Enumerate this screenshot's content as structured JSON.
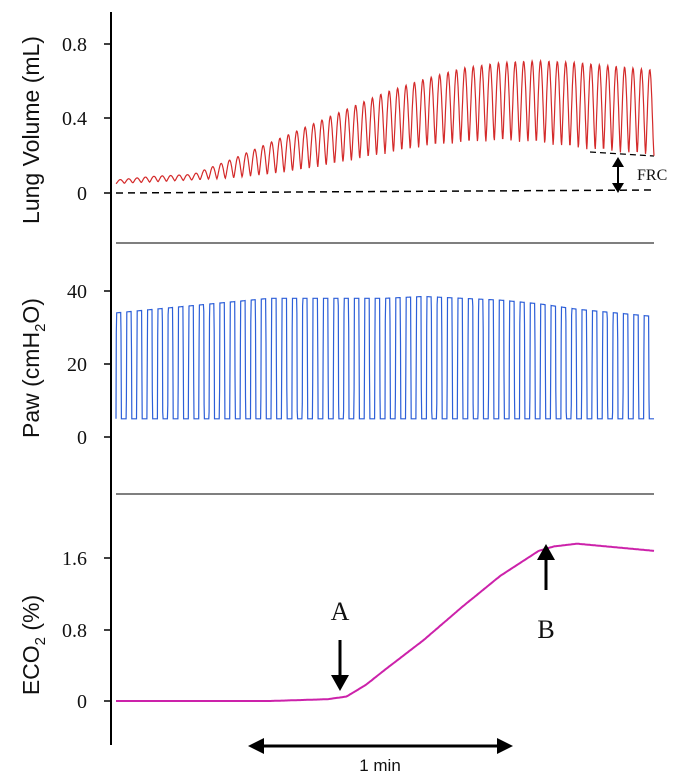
{
  "chart_data": [
    {
      "type": "line",
      "panel": "top",
      "ylabel": "Lung Volume (mL)",
      "yticks": [
        "0.8",
        "0.4",
        "0"
      ],
      "ylim": [
        0,
        0.8
      ],
      "series": [
        {
          "color": "#d42a2a",
          "description_points": "breath-by-breath volume oscillation",
          "x_sec": [
            0,
            10,
            20,
            30,
            40,
            50,
            60,
            70,
            80,
            90,
            100,
            110,
            120,
            130,
            140
          ],
          "trough": [
            0.05,
            0.06,
            0.07,
            0.08,
            0.1,
            0.13,
            0.17,
            0.21,
            0.25,
            0.27,
            0.28,
            0.27,
            0.24,
            0.22,
            0.2
          ],
          "peak": [
            0.07,
            0.09,
            0.1,
            0.18,
            0.27,
            0.36,
            0.45,
            0.54,
            0.61,
            0.67,
            0.7,
            0.71,
            0.7,
            0.68,
            0.66
          ]
        }
      ],
      "annotation": "FRC"
    },
    {
      "type": "line",
      "panel": "middle",
      "ylabel_main": "Paw (cmH",
      "ylabel_sub": "2",
      "ylabel_end": "O)",
      "yticks": [
        "40",
        "20",
        "0"
      ],
      "ylim": [
        0,
        40
      ],
      "series": [
        {
          "color": "#2d5fd8",
          "trough": 5,
          "x_sec": [
            0,
            10,
            20,
            30,
            40,
            50,
            60,
            70,
            80,
            90,
            100,
            110,
            120,
            130,
            140
          ],
          "peak": [
            34,
            35,
            36,
            37,
            38,
            38,
            38,
            38,
            38.5,
            38,
            37.5,
            36.5,
            35,
            34,
            33
          ]
        }
      ]
    },
    {
      "type": "line",
      "panel": "bottom",
      "ylabel_main": "ECO",
      "ylabel_sub": "2",
      "ylabel_end": " (%)",
      "yticks": [
        "1.6",
        "0.8",
        "0"
      ],
      "ylim": [
        0,
        2.0
      ],
      "series": [
        {
          "color": "#cc22aa",
          "x_sec": [
            0,
            20,
            40,
            55,
            60,
            65,
            70,
            80,
            90,
            100,
            110,
            114,
            120,
            130,
            140
          ],
          "y": [
            0,
            0,
            0,
            0.02,
            0.05,
            0.18,
            0.35,
            0.68,
            1.05,
            1.4,
            1.68,
            1.73,
            1.76,
            1.72,
            1.68
          ]
        }
      ],
      "markers": [
        {
          "label": "A",
          "x_sec": 58
        },
        {
          "label": "B",
          "x_sec": 114
        }
      ]
    }
  ],
  "scale_bar": {
    "label": "1 min"
  }
}
